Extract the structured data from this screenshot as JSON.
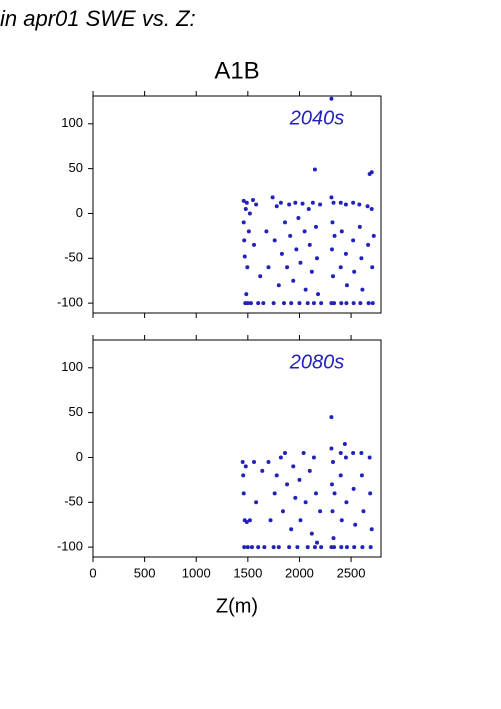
{
  "page_title": "in apr01 SWE vs. Z:",
  "scenario": "A1B",
  "chart_data": [
    {
      "type": "scatter",
      "annotation": "2040s",
      "color": "#2222bb",
      "xlim": [
        0,
        2790
      ],
      "ylim": [
        -111,
        131
      ],
      "xticks": [
        0,
        500,
        1000,
        1500,
        2000,
        2500
      ],
      "yticks": [
        -100,
        -50,
        0,
        50,
        100
      ],
      "show_xtick_labels": false,
      "x": [
        1460,
        1460,
        1465,
        1470,
        1475,
        1480,
        1485,
        1490,
        1495,
        1500,
        1510,
        1520,
        1530,
        1550,
        1560,
        1580,
        1600,
        1620,
        1650,
        1680,
        1700,
        1740,
        1750,
        1760,
        1780,
        1800,
        1820,
        1830,
        1850,
        1860,
        1880,
        1900,
        1910,
        1920,
        1940,
        1960,
        1970,
        1990,
        2000,
        2010,
        2030,
        2050,
        2060,
        2080,
        2090,
        2100,
        2120,
        2130,
        2140,
        2150,
        2160,
        2170,
        2180,
        2200,
        2210,
        2310,
        2310,
        2310,
        2315,
        2320,
        2325,
        2330,
        2335,
        2340,
        2400,
        2400,
        2405,
        2410,
        2450,
        2450,
        2455,
        2460,
        2520,
        2520,
        2525,
        2530,
        2580,
        2585,
        2590,
        2600,
        2610,
        2660,
        2665,
        2670,
        2680,
        2700,
        2700,
        2705,
        2710,
        2720
      ],
      "values": [
        14,
        -10,
        -30,
        -48,
        -100,
        5,
        -90,
        12,
        -60,
        -100,
        -20,
        0,
        -100,
        15,
        -35,
        10,
        -100,
        -70,
        -100,
        -20,
        -60,
        18,
        -100,
        -30,
        8,
        -80,
        12,
        -45,
        -100,
        -10,
        -60,
        10,
        -25,
        -100,
        -75,
        12,
        -40,
        -5,
        -100,
        -55,
        11,
        -20,
        -85,
        -100,
        5,
        -35,
        -65,
        12,
        -100,
        49,
        -15,
        -50,
        -90,
        10,
        -100,
        128,
        18,
        -100,
        -40,
        -10,
        -70,
        12,
        -100,
        -25,
        12,
        -60,
        -100,
        -20,
        10,
        -45,
        -100,
        -80,
        12,
        -30,
        -100,
        -65,
        10,
        -15,
        -100,
        -50,
        -85,
        8,
        -35,
        -100,
        44,
        46,
        5,
        -60,
        -100,
        -25
      ]
    },
    {
      "type": "scatter",
      "annotation": "2080s",
      "color": "#2222bb",
      "xlim": [
        0,
        2790
      ],
      "ylim": [
        -111,
        131
      ],
      "xticks": [
        0,
        500,
        1000,
        1500,
        2000,
        2500
      ],
      "yticks": [
        -100,
        -50,
        0,
        50,
        100
      ],
      "show_xtick_labels": true,
      "xlabel": "Z(m)",
      "x": [
        1450,
        1455,
        1460,
        1465,
        1470,
        1480,
        1490,
        1500,
        1520,
        1540,
        1560,
        1580,
        1600,
        1640,
        1660,
        1700,
        1720,
        1750,
        1760,
        1780,
        1800,
        1820,
        1840,
        1860,
        1880,
        1900,
        1920,
        1940,
        1960,
        1980,
        2000,
        2010,
        2040,
        2060,
        2080,
        2100,
        2120,
        2140,
        2150,
        2160,
        2170,
        2200,
        2210,
        2310,
        2310,
        2310,
        2315,
        2320,
        2325,
        2330,
        2335,
        2340,
        2400,
        2400,
        2405,
        2410,
        2440,
        2450,
        2455,
        2460,
        2520,
        2525,
        2530,
        2540,
        2600,
        2605,
        2610,
        2620,
        2680,
        2685,
        2690,
        2700
      ],
      "values": [
        -5,
        -20,
        -40,
        -100,
        -70,
        -10,
        -72,
        -100,
        -70,
        -100,
        -5,
        -50,
        -100,
        -15,
        -100,
        -5,
        -70,
        -100,
        -40,
        -20,
        -100,
        0,
        -60,
        5,
        -30,
        -100,
        -80,
        -10,
        -45,
        -100,
        -25,
        -70,
        5,
        -50,
        -100,
        -15,
        -85,
        0,
        -100,
        -40,
        -95,
        -60,
        -100,
        45,
        10,
        -100,
        -30,
        -60,
        -5,
        -90,
        -100,
        -40,
        5,
        -20,
        -100,
        -70,
        15,
        0,
        -50,
        -100,
        5,
        -35,
        -100,
        -75,
        5,
        -20,
        -100,
        -60,
        0,
        -40,
        -100,
        -80
      ]
    }
  ]
}
